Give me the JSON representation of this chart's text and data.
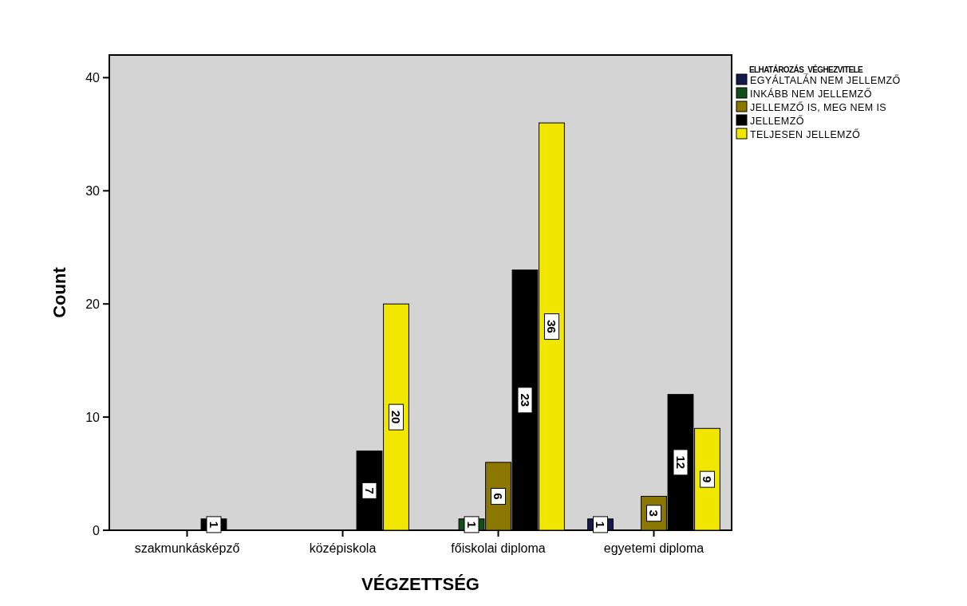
{
  "chart_data": {
    "type": "bar",
    "xlabel": "VÉGZETTSÉG",
    "ylabel": "Count",
    "legend_title": "ELHATÁROZÁS_VÉGHEZVITELE",
    "categories": [
      "szakmunkásképző",
      "középiskola",
      "főiskolai diploma",
      "egyetemi diploma"
    ],
    "series": [
      {
        "name": "EGYÁLTALÁN NEM JELLEMZŐ",
        "color": "#141a4e",
        "values": [
          null,
          null,
          null,
          1
        ]
      },
      {
        "name": "INKÁBB NEM JELLEMZŐ",
        "color": "#0f5016",
        "values": [
          null,
          null,
          1,
          null
        ]
      },
      {
        "name": "JELLEMZŐ IS, MEG NEM IS",
        "color": "#8c7800",
        "values": [
          null,
          null,
          6,
          3
        ]
      },
      {
        "name": "JELLEMZŐ",
        "color": "#000000",
        "values": [
          1,
          7,
          23,
          12
        ]
      },
      {
        "name": "TELJESEN JELLEMZŐ",
        "color": "#f0e600",
        "values": [
          null,
          20,
          36,
          9
        ]
      }
    ],
    "ylim": [
      0,
      42
    ],
    "yticks": [
      0,
      10,
      20,
      30,
      40
    ],
    "grid": false,
    "legend": "right",
    "data_labels": true
  }
}
